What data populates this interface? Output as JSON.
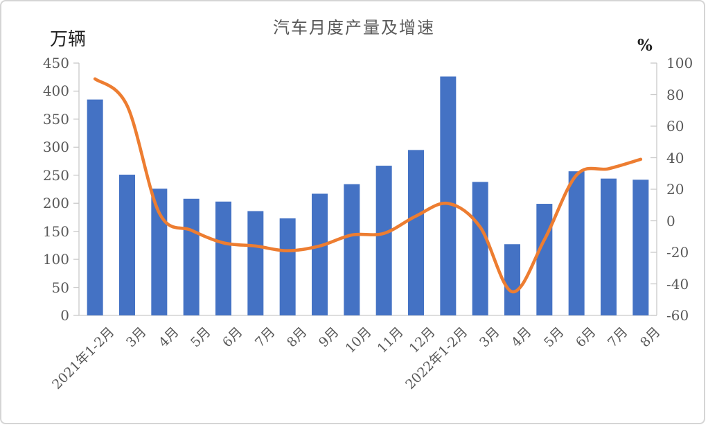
{
  "page": {
    "background": "#ffffff",
    "frame_border_color": "#d5d5d5"
  },
  "chart_data": {
    "type": "bar+line",
    "title": "汽车月度产量及增速",
    "categories": [
      "2021年1-2月",
      "3月",
      "4月",
      "5月",
      "6月",
      "7月",
      "8月",
      "9月",
      "10月",
      "11月",
      "12月",
      "2022年1-2月",
      "3月",
      "4月",
      "5月",
      "6月",
      "7月",
      "8月"
    ],
    "series": [
      {
        "name": "产量",
        "type": "bar",
        "axis": "left",
        "color": "#4472C4",
        "values": [
          385,
          251,
          226,
          208,
          203,
          186,
          173,
          217,
          234,
          267,
          295,
          426,
          238,
          127,
          199,
          257,
          244,
          242
        ]
      },
      {
        "name": "增速",
        "type": "line",
        "axis": "right",
        "color": "#ED7D31",
        "values": [
          90,
          73,
          5,
          -6,
          -14,
          -16,
          -19,
          -16,
          -9,
          -8,
          3,
          11,
          -4,
          -45,
          -12,
          29,
          33,
          39
        ]
      }
    ],
    "left_axis": {
      "unit": "万辆",
      "min": 0,
      "max": 450,
      "step": 50,
      "tick_labels": [
        "450",
        "400",
        "350",
        "300",
        "250",
        "200",
        "150",
        "100",
        "50",
        "0"
      ]
    },
    "right_axis": {
      "unit": "%",
      "min": -60,
      "max": 100,
      "step": 20,
      "tick_labels": [
        "100",
        "80",
        "60",
        "40",
        "20",
        "0",
        "-20",
        "-40",
        "-60"
      ]
    },
    "legend": "none",
    "gridlines": "none",
    "axis_line_color": "#c9c9c9",
    "tick_label_color": "#595959",
    "title_color": "#595959",
    "x_label_rotation_deg": -45
  }
}
